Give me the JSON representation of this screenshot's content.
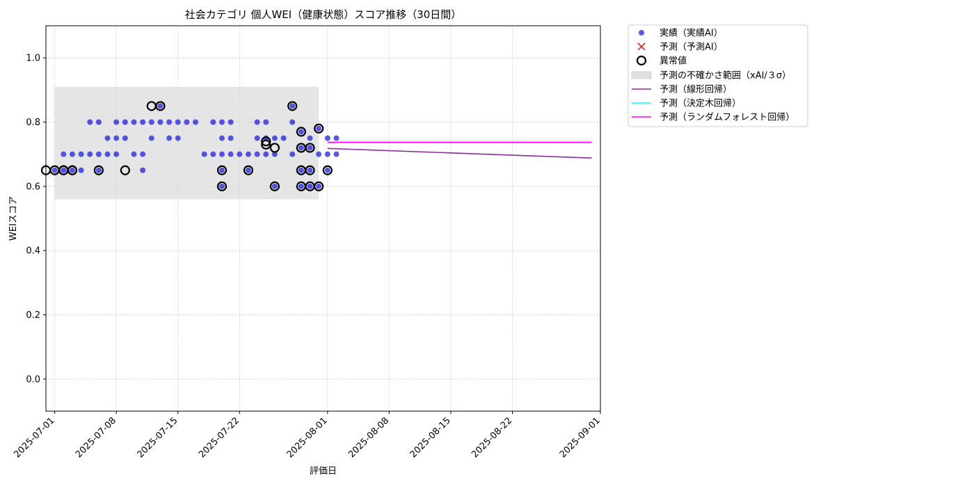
{
  "chart_data": {
    "type": "scatter",
    "title": "社会カテゴリ 個人WEI（健康状態）スコア推移（30日間）",
    "xlabel": "評価日",
    "ylabel": "WEIスコア",
    "x_type": "date",
    "xlim": [
      "2025-06-30",
      "2025-09-01"
    ],
    "ylim": [
      -0.1,
      1.1
    ],
    "grid": true,
    "legend_position": "outside-top-right",
    "x_ticks": [
      "2025-07-01",
      "2025-07-08",
      "2025-07-15",
      "2025-07-22",
      "2025-08-01",
      "2025-08-08",
      "2025-08-15",
      "2025-08-22",
      "2025-09-01"
    ],
    "y_ticks": [
      0.0,
      0.2,
      0.4,
      0.6,
      0.8,
      1.0
    ],
    "y_tick_labels": [
      "0.0",
      "0.2",
      "0.4",
      "0.6",
      "0.8",
      "1.0"
    ],
    "colors": {
      "actual": "#2020e0",
      "anomaly_edge": "#000000",
      "predicted_marker": "#e03030",
      "uncertainty_band": "#d3d3d3",
      "linear": "#8b2a9b",
      "decision_tree": "#00ffff",
      "random_forest": "#ff00ff"
    },
    "series": [
      {
        "name": "実績（実績AI）",
        "kind": "scatter",
        "points": [
          [
            "2025-07-01",
            0.65
          ],
          [
            "2025-07-02",
            0.65
          ],
          [
            "2025-07-02",
            0.7
          ],
          [
            "2025-07-03",
            0.65
          ],
          [
            "2025-07-03",
            0.7
          ],
          [
            "2025-07-04",
            0.65
          ],
          [
            "2025-07-04",
            0.7
          ],
          [
            "2025-07-05",
            0.8
          ],
          [
            "2025-07-05",
            0.7
          ],
          [
            "2025-07-06",
            0.8
          ],
          [
            "2025-07-06",
            0.65
          ],
          [
            "2025-07-06",
            0.7
          ],
          [
            "2025-07-07",
            0.75
          ],
          [
            "2025-07-07",
            0.7
          ],
          [
            "2025-07-08",
            0.8
          ],
          [
            "2025-07-08",
            0.75
          ],
          [
            "2025-07-08",
            0.7
          ],
          [
            "2025-07-09",
            0.8
          ],
          [
            "2025-07-09",
            0.75
          ],
          [
            "2025-07-10",
            0.8
          ],
          [
            "2025-07-10",
            0.7
          ],
          [
            "2025-07-11",
            0.8
          ],
          [
            "2025-07-11",
            0.7
          ],
          [
            "2025-07-11",
            0.65
          ],
          [
            "2025-07-12",
            0.8
          ],
          [
            "2025-07-12",
            0.75
          ],
          [
            "2025-07-13",
            0.8
          ],
          [
            "2025-07-13",
            0.85
          ],
          [
            "2025-07-14",
            0.8
          ],
          [
            "2025-07-14",
            0.75
          ],
          [
            "2025-07-15",
            0.8
          ],
          [
            "2025-07-15",
            0.75
          ],
          [
            "2025-07-16",
            0.8
          ],
          [
            "2025-07-17",
            0.8
          ],
          [
            "2025-07-18",
            0.7
          ],
          [
            "2025-07-19",
            0.8
          ],
          [
            "2025-07-19",
            0.7
          ],
          [
            "2025-07-20",
            0.8
          ],
          [
            "2025-07-20",
            0.75
          ],
          [
            "2025-07-20",
            0.7
          ],
          [
            "2025-07-20",
            0.65
          ],
          [
            "2025-07-20",
            0.6
          ],
          [
            "2025-07-21",
            0.8
          ],
          [
            "2025-07-21",
            0.75
          ],
          [
            "2025-07-21",
            0.7
          ],
          [
            "2025-07-22",
            0.7
          ],
          [
            "2025-07-23",
            0.7
          ],
          [
            "2025-07-23",
            0.65
          ],
          [
            "2025-07-24",
            0.8
          ],
          [
            "2025-07-24",
            0.75
          ],
          [
            "2025-07-24",
            0.7
          ],
          [
            "2025-07-25",
            0.8
          ],
          [
            "2025-07-25",
            0.75
          ],
          [
            "2025-07-25",
            0.7
          ],
          [
            "2025-07-26",
            0.75
          ],
          [
            "2025-07-26",
            0.7
          ],
          [
            "2025-07-26",
            0.6
          ],
          [
            "2025-07-27",
            0.75
          ],
          [
            "2025-07-28",
            0.8
          ],
          [
            "2025-07-28",
            0.7
          ],
          [
            "2025-07-28",
            0.85
          ],
          [
            "2025-07-29",
            0.77
          ],
          [
            "2025-07-29",
            0.72
          ],
          [
            "2025-07-29",
            0.65
          ],
          [
            "2025-07-29",
            0.6
          ],
          [
            "2025-07-30",
            0.75
          ],
          [
            "2025-07-30",
            0.72
          ],
          [
            "2025-07-30",
            0.65
          ],
          [
            "2025-07-30",
            0.6
          ],
          [
            "2025-07-31",
            0.78
          ],
          [
            "2025-07-31",
            0.7
          ],
          [
            "2025-07-31",
            0.6
          ],
          [
            "2025-08-01",
            0.75
          ],
          [
            "2025-08-01",
            0.7
          ],
          [
            "2025-08-01",
            0.65
          ],
          [
            "2025-08-02",
            0.75
          ],
          [
            "2025-08-02",
            0.7
          ]
        ]
      },
      {
        "name": "予測（予測AI）",
        "kind": "scatter-x",
        "points": []
      },
      {
        "name": "異常値",
        "kind": "anomaly",
        "points": [
          [
            "2025-06-30",
            0.65
          ],
          [
            "2025-07-01",
            0.65
          ],
          [
            "2025-07-02",
            0.65
          ],
          [
            "2025-07-02",
            0.65
          ],
          [
            "2025-07-03",
            0.65
          ],
          [
            "2025-07-03",
            0.65
          ],
          [
            "2025-07-06",
            0.65
          ],
          [
            "2025-07-09",
            0.65
          ],
          [
            "2025-07-12",
            0.85
          ],
          [
            "2025-07-13",
            0.85
          ],
          [
            "2025-07-20",
            0.65
          ],
          [
            "2025-07-20",
            0.6
          ],
          [
            "2025-07-23",
            0.65
          ],
          [
            "2025-07-25",
            0.74
          ],
          [
            "2025-07-25",
            0.73
          ],
          [
            "2025-07-26",
            0.72
          ],
          [
            "2025-07-26",
            0.6
          ],
          [
            "2025-07-28",
            0.85
          ],
          [
            "2025-07-29",
            0.77
          ],
          [
            "2025-07-29",
            0.72
          ],
          [
            "2025-07-29",
            0.65
          ],
          [
            "2025-07-29",
            0.6
          ],
          [
            "2025-07-30",
            0.72
          ],
          [
            "2025-07-30",
            0.65
          ],
          [
            "2025-07-30",
            0.6
          ],
          [
            "2025-07-31",
            0.78
          ],
          [
            "2025-07-31",
            0.6
          ],
          [
            "2025-08-01",
            0.65
          ]
        ]
      },
      {
        "name": "予測の不確かさ範囲（xAI/３σ）",
        "kind": "band",
        "x_range": [
          "2025-07-01",
          "2025-07-31"
        ],
        "y_range": [
          0.56,
          0.91
        ]
      },
      {
        "name": "予測（線形回帰）",
        "kind": "line",
        "points": [
          [
            "2025-08-01",
            0.718
          ],
          [
            "2025-08-31",
            0.688
          ]
        ]
      },
      {
        "name": "予測（決定木回帰）",
        "kind": "line",
        "points": [
          [
            "2025-08-01",
            0.737
          ],
          [
            "2025-08-31",
            0.737
          ]
        ]
      },
      {
        "name": "予測（ランダムフォレスト回帰）",
        "kind": "line",
        "points": [
          [
            "2025-08-01",
            0.737
          ],
          [
            "2025-08-31",
            0.737
          ]
        ]
      }
    ]
  }
}
